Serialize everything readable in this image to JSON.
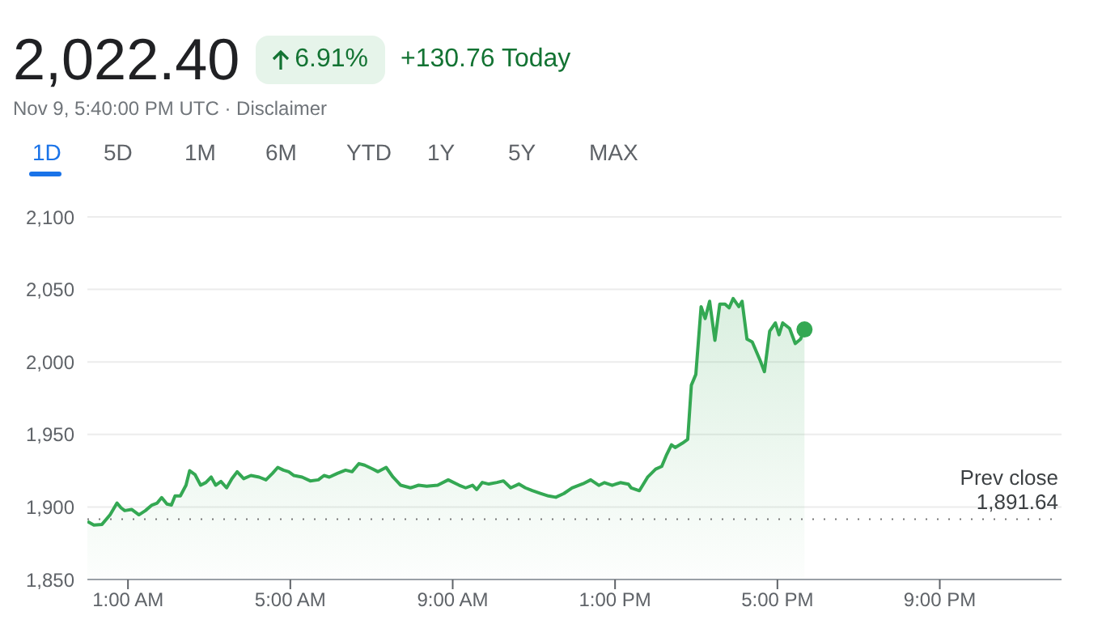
{
  "chart_data": {
    "type": "area",
    "title": "2,022.40",
    "subtitle": "Nov 9, 5:40:00 PM UTC · Disclaimer",
    "annotations": [
      "6.91%",
      "+130.76 Today",
      "1D",
      "5D",
      "1M",
      "6M",
      "YTD",
      "1Y",
      "5Y",
      "MAX"
    ],
    "x": [
      0,
      0.16,
      0.36,
      0.56,
      0.73,
      0.83,
      0.92,
      1.09,
      1.27,
      1.43,
      1.59,
      1.72,
      1.83,
      1.96,
      2.07,
      2.16,
      2.29,
      2.43,
      2.52,
      2.65,
      2.79,
      2.92,
      3.05,
      3.16,
      3.29,
      3.43,
      3.56,
      3.69,
      3.85,
      4.03,
      4.23,
      4.4,
      4.56,
      4.69,
      4.83,
      4.96,
      5.09,
      5.29,
      5.49,
      5.69,
      5.83,
      5.96,
      6.16,
      6.36,
      6.52,
      6.69,
      6.83,
      7.03,
      7.16,
      7.36,
      7.53,
      7.72,
      7.96,
      8.16,
      8.36,
      8.63,
      8.89,
      9.16,
      9.32,
      9.49,
      9.59,
      9.73,
      9.89,
      10.09,
      10.25,
      10.43,
      10.63,
      10.79,
      10.96,
      11.16,
      11.36,
      11.54,
      11.74,
      11.94,
      12.21,
      12.4,
      12.6,
      12.74,
      12.93,
      13.13,
      13.33,
      13.4,
      13.6,
      13.8,
      14,
      14.15,
      14.26,
      14.39,
      14.48,
      14.66,
      14.79,
      14.88,
      14.99,
      15.12,
      15.22,
      15.33,
      15.46,
      15.58,
      15.71,
      15.81,
      15.91,
      16.05,
      16.13,
      16.25,
      16.38,
      16.58,
      16.68,
      16.81,
      16.95,
      17.04,
      17.13,
      17.3,
      17.44,
      17.57,
      17.667
    ],
    "series": [
      {
        "color": "#34a853",
        "values": [
          1890,
          1887.5,
          1888,
          1894.6,
          1902.7,
          1899.4,
          1897.5,
          1898.3,
          1894.6,
          1897.5,
          1901.3,
          1902.7,
          1906.5,
          1902,
          1901.3,
          1907.6,
          1907.6,
          1915,
          1925,
          1922.4,
          1915,
          1916.9,
          1920.6,
          1915,
          1917.6,
          1913.2,
          1919.5,
          1924.3,
          1919.5,
          1921.7,
          1920.6,
          1918.7,
          1923.2,
          1927.3,
          1925.4,
          1924.3,
          1921.7,
          1920.6,
          1918,
          1918.7,
          1921.7,
          1920.6,
          1923.2,
          1925.4,
          1924.3,
          1929.9,
          1928.8,
          1926.2,
          1924.3,
          1927.3,
          1920.6,
          1915,
          1913.2,
          1915,
          1914.3,
          1915,
          1918.7,
          1915,
          1913.2,
          1915,
          1912,
          1916.9,
          1915.8,
          1916.9,
          1918,
          1913.2,
          1915.8,
          1913.2,
          1911.3,
          1909.4,
          1907.6,
          1906.7,
          1909.3,
          1913.1,
          1916,
          1918.7,
          1914.9,
          1916.8,
          1914.9,
          1916.8,
          1915.7,
          1913.1,
          1911.2,
          1920.5,
          1926.1,
          1928,
          1935.4,
          1942.9,
          1941,
          1944,
          1946.6,
          1984,
          1991.4,
          2038.1,
          2029.9,
          2041.8,
          2014.9,
          2039.9,
          2039.9,
          2037.3,
          2043.7,
          2038.1,
          2041.8,
          2015.7,
          2013.8,
          2000.7,
          1993.3,
          2021.3,
          2026.9,
          2018.7,
          2026.9,
          2023.1,
          2012.7,
          2015.7,
          2022.4
        ]
      }
    ],
    "xlim": [
      0,
      24
    ],
    "xticks": [
      {
        "value": 1,
        "label": "1:00 AM"
      },
      {
        "value": 5,
        "label": "5:00 AM"
      },
      {
        "value": 9,
        "label": "9:00 AM"
      },
      {
        "value": 13,
        "label": "1:00 PM"
      },
      {
        "value": 17,
        "label": "5:00 PM"
      },
      {
        "value": 21,
        "label": "9:00 PM"
      }
    ],
    "ylim": [
      1850,
      2100
    ],
    "yticks": [
      {
        "value": 1850,
        "label": "1,850"
      },
      {
        "value": 1900,
        "label": "1,900"
      },
      {
        "value": 1950,
        "label": "1,950"
      },
      {
        "value": 2000,
        "label": "2,000"
      },
      {
        "value": 2050,
        "label": "2,050"
      },
      {
        "value": 2100,
        "label": "2,100"
      }
    ],
    "grid": "y",
    "ref_lines": [
      {
        "axis": "y",
        "value": 1891.64,
        "label": "Prev close\n1,891.64",
        "line_style": "dotted",
        "color": "#777777"
      }
    ]
  }
}
